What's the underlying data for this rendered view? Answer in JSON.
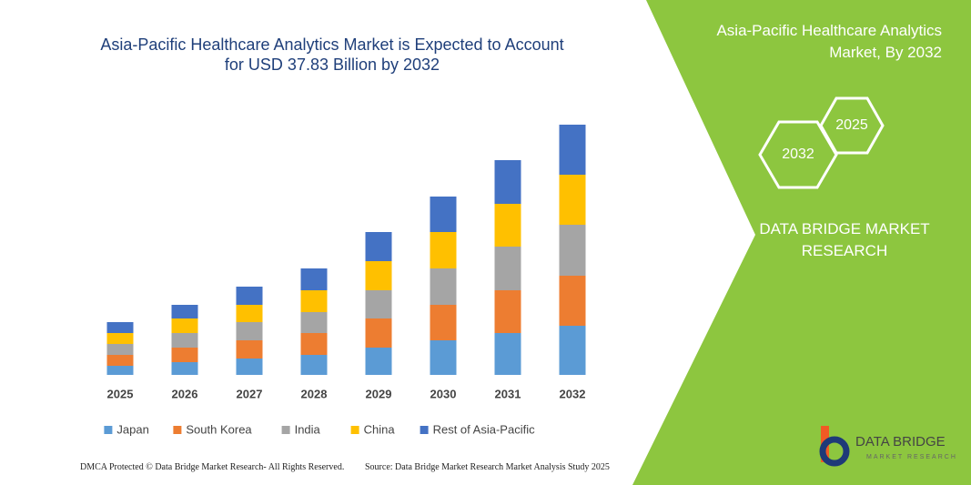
{
  "chart_data": {
    "type": "stacked_bar",
    "title": "Asia-Pacific Healthcare Analytics Market is Expected to Account for USD 37.83 Billion by 2032",
    "categories": [
      "2025",
      "2026",
      "2027",
      "2028",
      "2029",
      "2030",
      "2031",
      "2032"
    ],
    "series": [
      {
        "name": "Japan",
        "color": "#5b9bd5",
        "values": [
          10,
          14,
          18,
          22,
          30,
          38,
          46,
          54
        ]
      },
      {
        "name": "South Korea",
        "color": "#ed7d31",
        "values": [
          12,
          16,
          20,
          24,
          32,
          39,
          47,
          55
        ]
      },
      {
        "name": "India",
        "color": "#a5a5a5",
        "values": [
          12,
          16,
          20,
          23,
          31,
          40,
          48,
          56
        ]
      },
      {
        "name": "China",
        "color": "#ffc000",
        "values": [
          12,
          16,
          19,
          24,
          32,
          40,
          47,
          55
        ]
      },
      {
        "name": "Rest of Asia-Pacific",
        "color": "#4472c4",
        "values": [
          12,
          15,
          20,
          24,
          32,
          39,
          48,
          55
        ]
      }
    ],
    "legend": "bottom"
  },
  "side_panel": {
    "title": "Asia-Pacific Healthcare Analytics Market, By 2032",
    "hexagons": [
      "2032",
      "2025"
    ],
    "brand": "DATA BRIDGE MARKET RESEARCH"
  },
  "logo": {
    "name": "DATA BRIDGE",
    "tagline": "MARKET RESEARCH"
  },
  "footer": {
    "copyright": "DMCA Protected © Data Bridge Market Research- All Rights Reserved.",
    "source": "Source: Data Bridge Market Research  Market Analysis Study 2025"
  }
}
